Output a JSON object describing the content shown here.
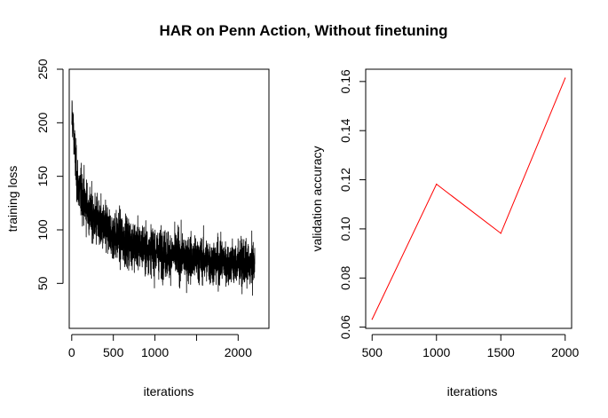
{
  "figure": {
    "title": "HAR on Penn Action, Without finetuning"
  },
  "chart_data": [
    {
      "type": "line",
      "xlabel": "iterations",
      "ylabel": "training loss",
      "xlim": [
        -30,
        2370
      ],
      "ylim": [
        8,
        250
      ],
      "xticks": [
        0,
        500,
        1000,
        1500,
        2000
      ],
      "xtick_labels": [
        "0",
        "500",
        "1000",
        "",
        "2000"
      ],
      "yticks": [
        50,
        100,
        150,
        200,
        250
      ],
      "ytick_labels": [
        "50",
        "100",
        "150",
        "200",
        "250"
      ],
      "series": [
        {
          "color": "#000000",
          "x": [
            0,
            20,
            40,
            60,
            80,
            100,
            150,
            200,
            250,
            300,
            400,
            500,
            600,
            700,
            800,
            900,
            1000,
            1100,
            1200,
            1300,
            1400,
            1500,
            1600,
            1700,
            1800,
            1900,
            2000,
            2100,
            2150,
            2200
          ],
          "y": [
            205,
            195,
            170,
            150,
            140,
            135,
            128,
            118,
            112,
            108,
            100,
            95,
            92,
            88,
            85,
            83,
            80,
            78,
            77,
            75,
            74,
            72,
            72,
            70,
            70,
            69,
            68,
            67,
            66,
            68
          ],
          "spread": [
            15,
            22,
            28,
            30,
            30,
            30,
            30,
            30,
            30,
            30,
            30,
            30,
            30,
            30,
            28,
            28,
            28,
            28,
            28,
            28,
            28,
            27,
            27,
            27,
            27,
            27,
            27,
            26,
            26,
            26
          ],
          "n_points": 2200,
          "min_value": 20,
          "seed": 12345
        }
      ],
      "grid": false
    },
    {
      "type": "line",
      "xlabel": "iterations",
      "ylabel": "validation accuracy",
      "xlim": [
        450,
        2050
      ],
      "ylim": [
        0.0595,
        0.165
      ],
      "xticks": [
        500,
        1000,
        1500,
        2000
      ],
      "xtick_labels": [
        "500",
        "1000",
        "1500",
        "2000"
      ],
      "yticks": [
        0.06,
        0.08,
        0.1,
        0.12,
        0.14,
        0.16
      ],
      "ytick_labels": [
        "0.06",
        "0.08",
        "0.10",
        "0.12",
        "0.14",
        "0.16"
      ],
      "series": [
        {
          "color": "#ff0000",
          "x": [
            500,
            1000,
            1500,
            2000
          ],
          "y": [
            0.0632,
            0.1182,
            0.0982,
            0.1614
          ]
        }
      ],
      "grid": false
    }
  ]
}
